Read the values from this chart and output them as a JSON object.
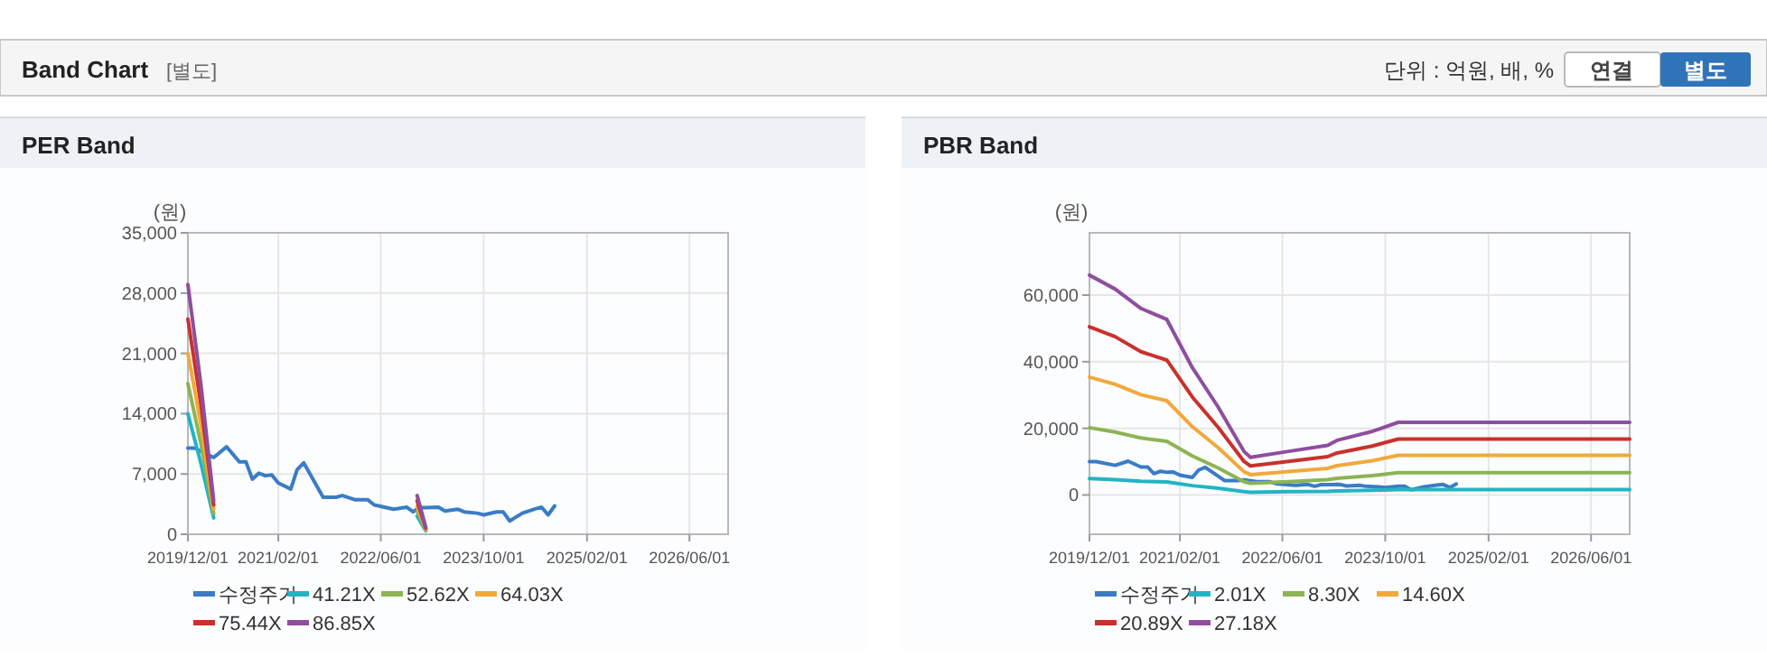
{
  "chart_data": [
    {
      "type": "line",
      "title": "PER Band",
      "ylabel": "(원)",
      "annotations": [
        "Band Chart",
        "[별도]",
        "단위 : 억원, 배, %",
        "연결",
        "별도"
      ],
      "xlim": [
        "2019-12-01",
        "2026-12-01"
      ],
      "xticks": [
        {
          "value": "2019-12-01",
          "label": "2019/12/01"
        },
        {
          "value": "2021-02-01",
          "label": "2021/02/01"
        },
        {
          "value": "2022-06-01",
          "label": "2022/06/01"
        },
        {
          "value": "2023-10-01",
          "label": "2023/10/01"
        },
        {
          "value": "2025-02-01",
          "label": "2025/02/01"
        },
        {
          "value": "2026-06-01",
          "label": "2026/06/01"
        }
      ],
      "ylim": [
        0,
        35000
      ],
      "yticks": [
        {
          "value": 0,
          "label": "0"
        },
        {
          "value": 7000,
          "label": "7,000"
        },
        {
          "value": 14000,
          "label": "14,000"
        },
        {
          "value": 21000,
          "label": "21,000"
        },
        {
          "value": 28000,
          "label": "28,000"
        },
        {
          "value": 35000,
          "label": "35,000"
        }
      ],
      "grid": true,
      "legend": "bottom",
      "series": [
        {
          "name": "수정주가",
          "color": "#3a7cc6",
          "x": [
            "2019-12-01",
            "2020-01-01",
            "2020-04-01",
            "2020-06-01",
            "2020-08-01",
            "2020-09-01",
            "2020-10-01",
            "2020-11-01",
            "2020-12-01",
            "2021-01-01",
            "2021-02-01",
            "2021-04-01",
            "2021-05-01",
            "2021-06-01",
            "2021-07-15",
            "2021-09-01",
            "2021-11-01",
            "2021-12-01",
            "2022-02-01",
            "2022-04-01",
            "2022-05-01",
            "2022-08-01",
            "2022-10-01",
            "2022-11-01",
            "2022-12-01",
            "2023-01-01",
            "2023-03-01",
            "2023-04-01",
            "2023-06-01",
            "2023-07-01",
            "2023-09-01",
            "2023-10-01",
            "2023-12-01",
            "2024-01-01",
            "2024-02-01",
            "2024-04-01",
            "2024-06-01",
            "2024-07-01",
            "2024-08-01",
            "2024-09-01"
          ],
          "values": [
            10000,
            10000,
            8900,
            10150,
            8400,
            8400,
            6400,
            7100,
            6800,
            6900,
            5950,
            5250,
            7500,
            8300,
            6400,
            4300,
            4300,
            4500,
            4000,
            4000,
            3400,
            2900,
            3150,
            2600,
            3100,
            3100,
            3150,
            2700,
            2900,
            2600,
            2450,
            2250,
            2600,
            2600,
            1550,
            2450,
            2950,
            3150,
            2250,
            3300
          ]
        },
        {
          "name": "41.21X",
          "color": "#22b4c4",
          "x": [
            "2019-12-01",
            "2020-02-01",
            "2020-04-01",
            "2021-06-01",
            "2022-11-20",
            "2022-12-31"
          ],
          "values": [
            14000,
            8200,
            1900,
            null,
            2100,
            400
          ]
        },
        {
          "name": "52.62X",
          "color": "#8cb453",
          "x": [
            "2019-12-01",
            "2020-02-01",
            "2020-04-01",
            "2021-06-01",
            "2022-11-20",
            "2022-12-31"
          ],
          "values": [
            17500,
            10500,
            2400,
            null,
            2700,
            500
          ]
        },
        {
          "name": "64.03X",
          "color": "#f3a83b",
          "x": [
            "2019-12-01",
            "2020-02-01",
            "2020-04-01",
            "2021-06-01",
            "2022-11-20",
            "2022-12-31"
          ],
          "values": [
            21000,
            12700,
            2900,
            null,
            3300,
            600
          ]
        },
        {
          "name": "75.44X",
          "color": "#c9312c",
          "x": [
            "2019-12-01",
            "2020-02-01",
            "2020-04-01",
            "2021-06-01",
            "2022-11-20",
            "2022-12-31"
          ],
          "values": [
            25000,
            15000,
            3400,
            null,
            3900,
            700
          ]
        },
        {
          "name": "86.85X",
          "color": "#8f4e9e",
          "x": [
            "2019-12-01",
            "2020-02-01",
            "2020-04-01",
            "2021-06-01",
            "2022-11-20",
            "2022-12-31"
          ],
          "values": [
            29000,
            17300,
            3900,
            null,
            4500,
            800
          ]
        }
      ]
    },
    {
      "type": "line",
      "title": "PBR Band",
      "ylabel": "(원)",
      "xlim": [
        "2019-12-01",
        "2026-12-01"
      ],
      "xticks": [
        {
          "value": "2019-12-01",
          "label": "2019/12/01"
        },
        {
          "value": "2021-02-01",
          "label": "2021/02/01"
        },
        {
          "value": "2022-06-01",
          "label": "2022/06/01"
        },
        {
          "value": "2023-10-01",
          "label": "2023/10/01"
        },
        {
          "value": "2025-02-01",
          "label": "2025/02/01"
        },
        {
          "value": "2026-06-01",
          "label": "2026/06/01"
        }
      ],
      "ylim": [
        -11800,
        78700
      ],
      "yticks": [
        {
          "value": 0,
          "label": "0"
        },
        {
          "value": 20000,
          "label": "20,000"
        },
        {
          "value": 40000,
          "label": "40,000"
        },
        {
          "value": 60000,
          "label": "60,000"
        }
      ],
      "grid": true,
      "legend": "bottom",
      "series": [
        {
          "name": "수정주가",
          "color": "#3a7cc6",
          "x": [
            "2019-12-01",
            "2020-01-01",
            "2020-04-01",
            "2020-06-01",
            "2020-08-01",
            "2020-09-01",
            "2020-10-01",
            "2020-11-01",
            "2020-12-01",
            "2021-01-01",
            "2021-02-01",
            "2021-04-01",
            "2021-05-01",
            "2021-06-01",
            "2021-07-15",
            "2021-09-01",
            "2021-11-01",
            "2021-12-01",
            "2022-02-01",
            "2022-04-01",
            "2022-05-01",
            "2022-08-01",
            "2022-10-01",
            "2022-11-01",
            "2022-12-01",
            "2023-01-01",
            "2023-03-01",
            "2023-04-01",
            "2023-06-01",
            "2023-07-01",
            "2023-09-01",
            "2023-10-01",
            "2023-12-01",
            "2024-01-01",
            "2024-02-01",
            "2024-04-01",
            "2024-06-01",
            "2024-07-01",
            "2024-08-01",
            "2024-09-01"
          ],
          "values": [
            10000,
            10000,
            8900,
            10150,
            8400,
            8400,
            6400,
            7100,
            6800,
            6900,
            5950,
            5250,
            7500,
            8300,
            6400,
            4300,
            4300,
            4500,
            4000,
            4000,
            3400,
            2900,
            3150,
            2600,
            3100,
            3100,
            3150,
            2700,
            2900,
            2600,
            2450,
            2250,
            2600,
            2600,
            1550,
            2450,
            2950,
            3150,
            2250,
            3300
          ]
        },
        {
          "name": "2.01X",
          "color": "#22b4c4",
          "x": [
            "2019-12-01",
            "2020-04-01",
            "2020-08-01",
            "2020-12-01",
            "2021-04-01",
            "2021-08-01",
            "2021-12-01",
            "2022-01-01",
            "2022-07-01",
            "2023-01-01",
            "2023-02-15",
            "2023-08-01",
            "2023-12-01",
            "2026-12-01"
          ],
          "values": [
            4900,
            4600,
            4100,
            3900,
            2800,
            2000,
            1000,
            800,
            1000,
            1100,
            1200,
            1400,
            1600,
            1600
          ]
        },
        {
          "name": "8.30X",
          "color": "#8cb453",
          "x": [
            "2019-12-01",
            "2020-04-01",
            "2020-08-01",
            "2020-12-01",
            "2021-04-01",
            "2021-08-01",
            "2021-12-01",
            "2022-01-01",
            "2022-07-01",
            "2023-01-01",
            "2023-02-15",
            "2023-08-01",
            "2023-12-01",
            "2026-12-01"
          ],
          "values": [
            20200,
            18900,
            17100,
            16100,
            11700,
            8100,
            4000,
            3500,
            4000,
            4600,
            5000,
            5800,
            6700,
            6700
          ]
        },
        {
          "name": "14.60X",
          "color": "#f3a83b",
          "x": [
            "2019-12-01",
            "2020-04-01",
            "2020-08-01",
            "2020-12-01",
            "2021-04-01",
            "2021-08-01",
            "2021-12-01",
            "2022-01-01",
            "2022-07-01",
            "2023-01-01",
            "2023-02-15",
            "2023-08-01",
            "2023-12-01",
            "2026-12-01"
          ],
          "values": [
            35400,
            33200,
            30100,
            28300,
            20500,
            14200,
            7000,
            6100,
            7000,
            8000,
            8800,
            10300,
            11900,
            11900
          ]
        },
        {
          "name": "20.89X",
          "color": "#c9312c",
          "x": [
            "2019-12-01",
            "2020-04-01",
            "2020-08-01",
            "2020-12-01",
            "2021-04-01",
            "2021-08-01",
            "2021-12-01",
            "2022-01-01",
            "2022-07-01",
            "2023-01-01",
            "2023-02-15",
            "2023-08-01",
            "2023-12-01",
            "2026-12-01"
          ],
          "values": [
            50500,
            47500,
            43000,
            40500,
            29400,
            20300,
            10100,
            8700,
            10100,
            11500,
            12600,
            14700,
            16800,
            16800
          ]
        },
        {
          "name": "27.18X",
          "color": "#8f4e9e",
          "x": [
            "2019-12-01",
            "2020-04-01",
            "2020-08-01",
            "2020-12-01",
            "2021-04-01",
            "2021-08-01",
            "2021-12-01",
            "2022-01-01",
            "2022-07-01",
            "2023-01-01",
            "2023-02-15",
            "2023-08-01",
            "2023-12-01",
            "2026-12-01"
          ],
          "values": [
            66000,
            61800,
            56000,
            52700,
            38200,
            26400,
            13100,
            11300,
            13100,
            14900,
            16400,
            19100,
            21800,
            21800
          ]
        }
      ]
    }
  ]
}
